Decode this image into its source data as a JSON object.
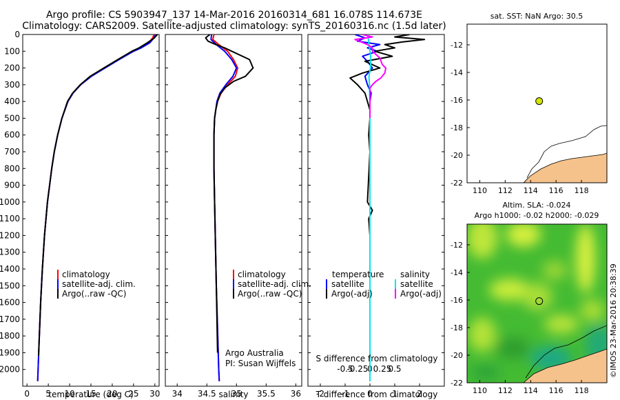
{
  "header": {
    "line1": "Argo profile: CS 5903947_137 14-Mar-2016 20160314_681 16.078S 114.673E",
    "line2": "Climatology: CARS2009. Satellite-adjusted climatology: synTS_20160316.nc (1.5d later)"
  },
  "colors": {
    "climatology": "#ff0000",
    "satellite": "#0000ff",
    "argo": "#000000",
    "sal_satellite": "#00e5ee",
    "sal_argo": "#ff00ff",
    "land": "#f5c28c",
    "ocean_green": "#33bb33",
    "ocean_yellow": "#ccee33",
    "argo_marker": "#d4e600"
  },
  "chart_data": [
    {
      "type": "line",
      "name": "temperature-profile",
      "xlabel": "temperature (deg C)",
      "ylabel": "",
      "xlim": [
        -1,
        31
      ],
      "ylim": [
        2100,
        0
      ],
      "xticks": [
        0,
        5,
        10,
        15,
        20,
        25,
        30
      ],
      "yticks": [
        0,
        100,
        200,
        300,
        400,
        500,
        600,
        700,
        800,
        900,
        1000,
        1100,
        1200,
        1300,
        1400,
        1500,
        1600,
        1700,
        1800,
        1900,
        2000
      ],
      "legend": [
        "climatology",
        "satellite-adj. clim.",
        "Argo(..raw -QC)"
      ],
      "legend_position": "lower-center",
      "series": [
        {
          "name": "climatology",
          "color": "#ff0000",
          "depth": [
            0,
            20,
            50,
            80,
            100,
            150,
            200,
            250,
            300,
            350,
            400,
            500,
            600,
            700,
            800,
            900,
            1000,
            1200,
            1400,
            1600,
            1800,
            2000,
            2070
          ],
          "values": [
            29.8,
            29.5,
            28.5,
            26.5,
            24.8,
            21.5,
            18.2,
            15.0,
            12.6,
            10.8,
            9.6,
            8.2,
            7.2,
            6.4,
            5.8,
            5.3,
            4.8,
            4.1,
            3.6,
            3.2,
            2.9,
            2.6,
            2.5
          ]
        },
        {
          "name": "satellite-adj. clim.",
          "color": "#0000ff",
          "depth": [
            0,
            20,
            50,
            80,
            100,
            150,
            200,
            250,
            300,
            350,
            400,
            500,
            600,
            700,
            800,
            900,
            1000,
            1200,
            1400,
            1600,
            1800,
            2000,
            2070
          ],
          "values": [
            30.2,
            29.8,
            28.8,
            26.8,
            25.0,
            21.6,
            18.3,
            15.1,
            12.6,
            10.8,
            9.6,
            8.2,
            7.2,
            6.4,
            5.8,
            5.3,
            4.8,
            4.1,
            3.6,
            3.2,
            2.9,
            2.6,
            2.5
          ]
        },
        {
          "name": "Argo(..raw -QC)",
          "color": "#000000",
          "depth": [
            0,
            20,
            50,
            80,
            100,
            150,
            200,
            250,
            300,
            350,
            400,
            500,
            600,
            700,
            800,
            900,
            1000,
            1200,
            1400,
            1600,
            1800,
            1920
          ],
          "values": [
            30.6,
            29.9,
            28.2,
            26.3,
            24.6,
            21.3,
            18.0,
            14.8,
            12.5,
            10.7,
            9.5,
            8.2,
            7.2,
            6.4,
            5.8,
            5.3,
            4.8,
            4.1,
            3.6,
            3.2,
            2.9,
            2.7
          ]
        }
      ]
    },
    {
      "type": "line",
      "name": "salinity-profile",
      "xlabel": "salinity",
      "xlim": [
        33.8,
        36.1
      ],
      "ylim": [
        2100,
        0
      ],
      "xticks": [
        34,
        34.5,
        35,
        35.5,
        36
      ],
      "legend": [
        "climatology",
        "satellite-adj. clim.",
        "Argo(..raw -QC)"
      ],
      "legend_position": "lower-right",
      "annotation": [
        "Argo Australia",
        "PI: Susan Wijffels"
      ],
      "series": [
        {
          "name": "climatology",
          "color": "#ff0000",
          "depth": [
            0,
            30,
            60,
            100,
            150,
            200,
            250,
            300,
            350,
            400,
            450,
            500,
            600,
            800,
            1000,
            1500,
            2000,
            2070
          ],
          "values": [
            34.62,
            34.6,
            34.7,
            34.85,
            34.95,
            35.02,
            34.98,
            34.85,
            34.74,
            34.68,
            34.65,
            34.63,
            34.62,
            34.62,
            34.63,
            34.66,
            34.7,
            34.71
          ]
        },
        {
          "name": "satellite-adj. clim.",
          "color": "#0000ff",
          "depth": [
            0,
            30,
            60,
            100,
            150,
            200,
            250,
            300,
            350,
            400,
            450,
            500,
            600,
            800,
            1000,
            1500,
            2000,
            2070
          ],
          "values": [
            34.58,
            34.57,
            34.66,
            34.8,
            34.92,
            35.0,
            34.94,
            34.82,
            34.72,
            34.67,
            34.65,
            34.63,
            34.62,
            34.62,
            34.63,
            34.66,
            34.7,
            34.71
          ]
        },
        {
          "name": "Argo(..raw -QC)",
          "color": "#000000",
          "depth": [
            0,
            20,
            40,
            60,
            80,
            100,
            150,
            200,
            250,
            280,
            320,
            360,
            400,
            450,
            500,
            600,
            800,
            1000,
            1500,
            1900
          ],
          "values": [
            34.55,
            34.48,
            34.52,
            34.65,
            34.8,
            34.92,
            35.22,
            35.28,
            35.15,
            34.95,
            34.8,
            34.72,
            34.68,
            34.65,
            34.63,
            34.62,
            34.62,
            34.63,
            34.66,
            34.68
          ]
        }
      ]
    },
    {
      "type": "line",
      "name": "difference-profile",
      "xlabel": "T difference from climatology",
      "xlabel2": "S difference from climatology",
      "xlim": [
        -2.5,
        3.0
      ],
      "ylim": [
        2100,
        0
      ],
      "xticks": [
        -2,
        -1,
        0,
        1,
        2
      ],
      "xticks2": [
        -0.5,
        -0.25,
        0,
        0.25,
        0.5
      ],
      "xticks2_labels": [
        "-0.5",
        "-0.25",
        "0",
        "0.25",
        "0.5"
      ],
      "legend_groups": [
        {
          "title": "temperature",
          "items": [
            "satellite",
            "Argo(-adj)"
          ]
        },
        {
          "title": "salinity",
          "items": [
            "satellite",
            "Argo(-adj)"
          ]
        }
      ],
      "legend_position": "lower-center",
      "series": [
        {
          "name": "T satellite",
          "color": "#0000ff",
          "depth": [
            0,
            20,
            40,
            60,
            80,
            100,
            130,
            160,
            200,
            250,
            300,
            350,
            400,
            600,
            1000,
            1500,
            2070
          ],
          "values": [
            -0.6,
            -0.2,
            -0.5,
            0.4,
            -0.1,
            0.3,
            -0.3,
            -0.1,
            0.1,
            -0.2,
            -0.1,
            0.05,
            0.0,
            0.0,
            0.0,
            0.0,
            0.0
          ]
        },
        {
          "name": "T Argo(-adj)",
          "color": "#000000",
          "depth": [
            0,
            15,
            30,
            45,
            60,
            80,
            100,
            130,
            160,
            200,
            230,
            260,
            300,
            350,
            400,
            450,
            500,
            600,
            700,
            1000,
            1050,
            1100,
            1200,
            1500,
            1900
          ],
          "values": [
            1.6,
            1.0,
            2.2,
            1.3,
            0.6,
            1.0,
            0.2,
            0.9,
            -0.2,
            0.4,
            -0.3,
            -0.8,
            -0.5,
            -0.2,
            -0.1,
            0.0,
            0.0,
            -0.05,
            0.0,
            -0.1,
            0.1,
            -0.05,
            0.0,
            0.0,
            0.0
          ]
        },
        {
          "name": "S satellite",
          "color": "#00e5ee",
          "depth": [
            0,
            30,
            60,
            100,
            150,
            200,
            250,
            300,
            400,
            600,
            1000,
            1500,
            2070
          ],
          "values": [
            -0.05,
            -0.03,
            -0.02,
            0.0,
            0.02,
            0.01,
            -0.02,
            -0.01,
            0.0,
            0.0,
            0.0,
            0.0,
            0.0
          ]
        },
        {
          "name": "S Argo(-adj)",
          "color": "#ff00ff",
          "depth": [
            0,
            15,
            30,
            60,
            80,
            100,
            140,
            180,
            200,
            230,
            260,
            280,
            300,
            320,
            400,
            500
          ],
          "values": [
            -0.15,
            0.05,
            -0.3,
            -0.05,
            0.05,
            0.05,
            0.2,
            0.25,
            0.32,
            0.3,
            0.22,
            0.12,
            0.05,
            0.0,
            0.0,
            0.0
          ]
        }
      ]
    },
    {
      "type": "heatmap",
      "name": "sst-map",
      "title": "sat. SST: NaN Argo: 30.5",
      "xlim": [
        109,
        120
      ],
      "ylim": [
        -22,
        -10.5
      ],
      "xticks": [
        110,
        112,
        114,
        116,
        118
      ],
      "yticks": [
        -22,
        -20,
        -18,
        -16,
        -14,
        -12
      ],
      "argo_position": [
        114.673,
        -16.078
      ]
    },
    {
      "type": "heatmap",
      "name": "sla-map",
      "title": "Altim. SLA: -0.024",
      "subtitle": "Argo h1000: -0.02 h2000: -0.029",
      "xlim": [
        109,
        120
      ],
      "ylim": [
        -22,
        -10.5
      ],
      "xticks": [
        110,
        112,
        114,
        116,
        118
      ],
      "yticks": [
        -22,
        -20,
        -18,
        -16,
        -14,
        -12
      ],
      "argo_position": [
        114.673,
        -16.078
      ]
    }
  ],
  "credit": "©IMOS 23-Mar-2016 20:38:39"
}
